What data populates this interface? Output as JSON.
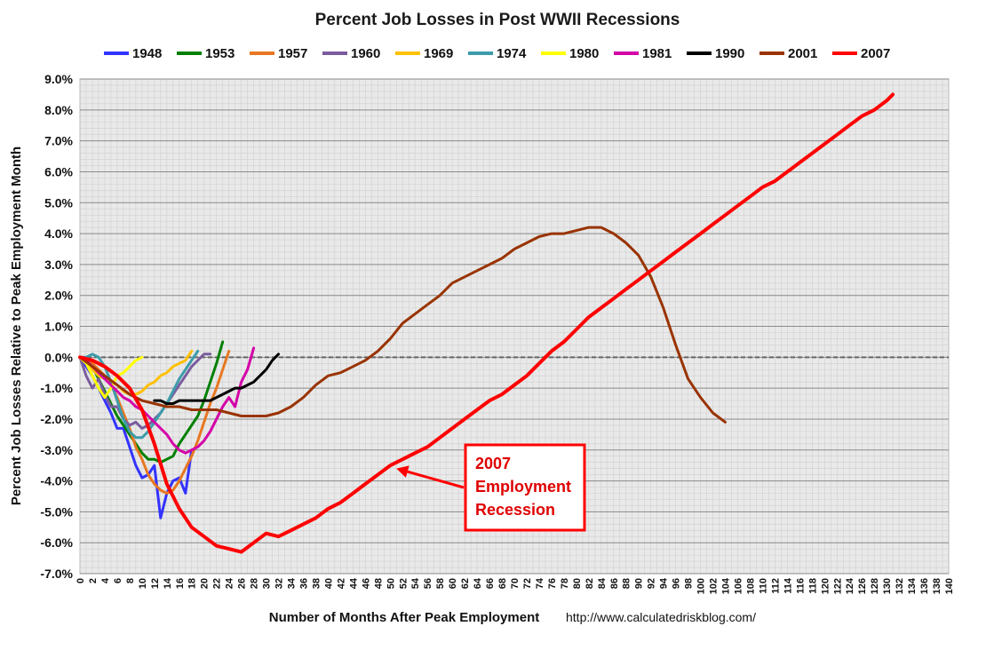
{
  "chart_data": {
    "type": "line",
    "title": "Percent Job Losses in Post WWII Recessions",
    "xlabel": "Number of Months After Peak Employment",
    "ylabel": "Percent Job Losses Relative to Peak Employment Month",
    "source": "http://www.calculatedriskblog.com/",
    "xlim": [
      0,
      140
    ],
    "ylim": [
      -7.0,
      9.0
    ],
    "x_ticks": [
      0,
      2,
      4,
      6,
      8,
      10,
      12,
      14,
      16,
      18,
      20,
      22,
      24,
      26,
      28,
      30,
      32,
      34,
      36,
      38,
      40,
      42,
      44,
      46,
      48,
      50,
      52,
      54,
      56,
      58,
      60,
      62,
      64,
      66,
      68,
      70,
      72,
      74,
      76,
      78,
      80,
      82,
      84,
      86,
      88,
      90,
      92,
      94,
      96,
      98,
      100,
      102,
      104,
      106,
      108,
      110,
      112,
      114,
      116,
      118,
      120,
      122,
      124,
      126,
      128,
      130,
      132,
      134,
      136,
      138,
      140
    ],
    "y_ticks": [
      "9.0%",
      "8.0%",
      "7.0%",
      "6.0%",
      "5.0%",
      "4.0%",
      "3.0%",
      "2.0%",
      "1.0%",
      "0.0%",
      "-1.0%",
      "-2.0%",
      "-3.0%",
      "-4.0%",
      "-5.0%",
      "-6.0%",
      "-7.0%"
    ],
    "grid": true,
    "legend_position": "top",
    "annotation": {
      "lines": [
        "2007",
        "Employment",
        "Recession"
      ],
      "color": "#e00000",
      "arrow_target": {
        "x": 51,
        "y": -3.6
      }
    },
    "series": [
      {
        "name": "1948",
        "color": "#3333ff",
        "x": [
          0,
          1,
          2,
          3,
          4,
          5,
          6,
          7,
          8,
          9,
          10,
          11,
          12,
          13,
          14,
          15,
          16,
          17,
          18
        ],
        "y": [
          0,
          -0.3,
          -0.6,
          -1.0,
          -1.4,
          -1.8,
          -2.3,
          -2.3,
          -2.9,
          -3.5,
          -3.9,
          -3.8,
          -3.5,
          -5.2,
          -4.4,
          -4.0,
          -3.9,
          -4.4,
          -3.0
        ]
      },
      {
        "name": "1953",
        "color": "#008000",
        "x": [
          0,
          1,
          2,
          3,
          4,
          5,
          6,
          7,
          8,
          9,
          10,
          11,
          12,
          13,
          14,
          15,
          16,
          17,
          18,
          19,
          20,
          21,
          22,
          23
        ],
        "y": [
          0,
          -0.1,
          -0.3,
          -0.7,
          -1.1,
          -1.5,
          -1.9,
          -2.2,
          -2.5,
          -2.8,
          -3.1,
          -3.3,
          -3.3,
          -3.4,
          -3.3,
          -3.2,
          -2.8,
          -2.5,
          -2.2,
          -1.9,
          -1.4,
          -0.8,
          -0.2,
          0.5
        ]
      },
      {
        "name": "1957",
        "color": "#e87722",
        "x": [
          0,
          1,
          2,
          3,
          4,
          5,
          6,
          7,
          8,
          9,
          10,
          11,
          12,
          13,
          14,
          15,
          16,
          17,
          18,
          19,
          20,
          21,
          22,
          23,
          24
        ],
        "y": [
          0,
          -0.1,
          -0.2,
          -0.4,
          -0.6,
          -0.9,
          -1.3,
          -1.8,
          -2.3,
          -2.9,
          -3.3,
          -3.8,
          -4.1,
          -4.3,
          -4.4,
          -4.3,
          -4.0,
          -3.6,
          -3.2,
          -2.7,
          -2.1,
          -1.5,
          -1.0,
          -0.4,
          0.2
        ]
      },
      {
        "name": "1960",
        "color": "#7a5c9e",
        "x": [
          0,
          1,
          2,
          3,
          4,
          5,
          6,
          7,
          8,
          9,
          10,
          11,
          12,
          13,
          14,
          15,
          16,
          17,
          18,
          19,
          20,
          21
        ],
        "y": [
          0,
          -0.6,
          -1.0,
          -0.7,
          -1.2,
          -1.6,
          -1.6,
          -2.0,
          -2.2,
          -2.1,
          -2.3,
          -2.2,
          -2.0,
          -1.8,
          -1.5,
          -1.2,
          -0.9,
          -0.6,
          -0.3,
          -0.1,
          0.1,
          0.1
        ]
      },
      {
        "name": "1969",
        "color": "#ffc000",
        "x": [
          0,
          1,
          2,
          3,
          4,
          5,
          6,
          7,
          8,
          9,
          10,
          11,
          12,
          13,
          14,
          15,
          16,
          17,
          18
        ],
        "y": [
          0,
          -0.2,
          -0.4,
          -0.6,
          -0.7,
          -0.8,
          -0.9,
          -1.1,
          -1.2,
          -1.2,
          -1.1,
          -0.9,
          -0.8,
          -0.6,
          -0.5,
          -0.3,
          -0.2,
          -0.1,
          0.2
        ]
      },
      {
        "name": "1974",
        "color": "#3c9caa",
        "x": [
          0,
          1,
          2,
          3,
          4,
          5,
          6,
          7,
          8,
          9,
          10,
          11,
          12,
          13,
          14,
          15,
          16,
          17,
          18,
          19
        ],
        "y": [
          0,
          0.0,
          0.1,
          0.0,
          -0.3,
          -0.8,
          -1.4,
          -2.0,
          -2.4,
          -2.6,
          -2.6,
          -2.4,
          -2.1,
          -1.8,
          -1.5,
          -1.1,
          -0.7,
          -0.4,
          -0.1,
          0.2
        ]
      },
      {
        "name": "1980",
        "color": "#ffff00",
        "x": [
          0,
          1,
          2,
          3,
          4,
          5,
          6,
          7,
          8,
          9,
          10
        ],
        "y": [
          0,
          -0.2,
          -0.6,
          -1.0,
          -1.3,
          -1.0,
          -0.6,
          -0.5,
          -0.3,
          -0.1,
          0.0
        ]
      },
      {
        "name": "1981",
        "color": "#d400a8",
        "x": [
          0,
          1,
          2,
          3,
          4,
          5,
          6,
          7,
          8,
          9,
          10,
          11,
          12,
          13,
          14,
          15,
          16,
          17,
          18,
          19,
          20,
          21,
          22,
          23,
          24,
          25,
          26,
          27,
          28
        ],
        "y": [
          0,
          -0.1,
          -0.3,
          -0.5,
          -0.7,
          -0.9,
          -1.1,
          -1.3,
          -1.4,
          -1.6,
          -1.7,
          -1.9,
          -2.1,
          -2.3,
          -2.5,
          -2.8,
          -3.0,
          -3.1,
          -3.0,
          -2.9,
          -2.7,
          -2.4,
          -2.0,
          -1.6,
          -1.3,
          -1.6,
          -0.8,
          -0.4,
          0.3
        ]
      },
      {
        "name": "1990",
        "color": "#000000",
        "x": [
          12,
          13,
          14,
          15,
          16,
          17,
          18,
          19,
          20,
          21,
          22,
          23,
          24,
          25,
          26,
          27,
          28,
          29,
          30,
          31,
          32
        ],
        "y": [
          -1.4,
          -1.4,
          -1.5,
          -1.5,
          -1.4,
          -1.4,
          -1.4,
          -1.4,
          -1.4,
          -1.4,
          -1.3,
          -1.2,
          -1.1,
          -1.0,
          -1.0,
          -0.9,
          -0.8,
          -0.6,
          -0.4,
          -0.1,
          0.1
        ]
      },
      {
        "name": "2001",
        "color": "#993300",
        "x": [
          0,
          2,
          4,
          6,
          8,
          10,
          12,
          14,
          16,
          18,
          20,
          22,
          24,
          26,
          28,
          30,
          32,
          34,
          36,
          38,
          40,
          42,
          44,
          46,
          48,
          50,
          52,
          54,
          56,
          58,
          60,
          62,
          64,
          66,
          68,
          70,
          72,
          74,
          76,
          78,
          80,
          82,
          84,
          86,
          88,
          90,
          92,
          94,
          96,
          98,
          100,
          102,
          104
        ],
        "y": [
          0,
          -0.3,
          -0.6,
          -0.9,
          -1.2,
          -1.4,
          -1.5,
          -1.6,
          -1.6,
          -1.7,
          -1.7,
          -1.7,
          -1.8,
          -1.9,
          -1.9,
          -1.9,
          -1.8,
          -1.6,
          -1.3,
          -0.9,
          -0.6,
          -0.5,
          -0.3,
          -0.1,
          0.2,
          0.6,
          1.1,
          1.4,
          1.7,
          2.0,
          2.4,
          2.6,
          2.8,
          3.0,
          3.2,
          3.5,
          3.7,
          3.9,
          4.0,
          4.0,
          4.1,
          4.2,
          4.2,
          4.0,
          3.7,
          3.3,
          2.6,
          1.6,
          0.4,
          -0.7,
          -1.3,
          -1.8,
          -2.1
        ]
      },
      {
        "name": "2007",
        "color": "#ff0000",
        "x": [
          0,
          2,
          4,
          6,
          8,
          10,
          12,
          14,
          16,
          18,
          20,
          22,
          24,
          26,
          28,
          30,
          32,
          34,
          36,
          38,
          40,
          42,
          44,
          46,
          48,
          50,
          52,
          54,
          56,
          58,
          60,
          62,
          64,
          66,
          68,
          70,
          72,
          74,
          76,
          78,
          80,
          82,
          84,
          86,
          88,
          90,
          92,
          94,
          96,
          98,
          100,
          102,
          104,
          106,
          108,
          110,
          112,
          114,
          116,
          118,
          120,
          122,
          124,
          126,
          128,
          130,
          131
        ],
        "y": [
          0,
          -0.1,
          -0.3,
          -0.6,
          -1.0,
          -1.7,
          -2.8,
          -4.1,
          -4.9,
          -5.5,
          -5.8,
          -6.1,
          -6.2,
          -6.3,
          -6.0,
          -5.7,
          -5.8,
          -5.6,
          -5.4,
          -5.2,
          -4.9,
          -4.7,
          -4.4,
          -4.1,
          -3.8,
          -3.5,
          -3.3,
          -3.1,
          -2.9,
          -2.6,
          -2.3,
          -2.0,
          -1.7,
          -1.4,
          -1.2,
          -0.9,
          -0.6,
          -0.2,
          0.2,
          0.5,
          0.9,
          1.3,
          1.6,
          1.9,
          2.2,
          2.5,
          2.8,
          3.1,
          3.4,
          3.7,
          4.0,
          4.3,
          4.6,
          4.9,
          5.2,
          5.5,
          5.7,
          6.0,
          6.3,
          6.6,
          6.9,
          7.2,
          7.5,
          7.8,
          8.0,
          8.3,
          8.5
        ]
      }
    ]
  }
}
